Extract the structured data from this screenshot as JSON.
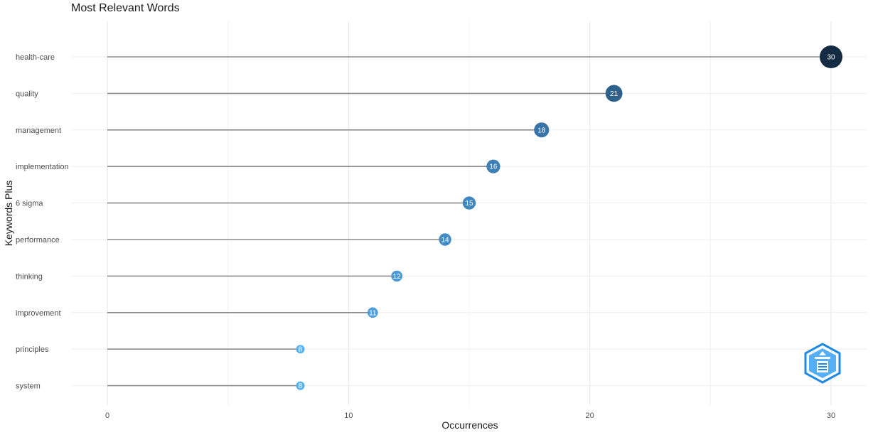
{
  "chart_data": {
    "type": "lollipop",
    "title": "Most Relevant Words",
    "xlabel": "Occurrences",
    "ylabel": "Keywords Plus",
    "xlim": [
      -1.5,
      31.5
    ],
    "xticks": [
      0,
      10,
      20,
      30
    ],
    "grid": true,
    "categories": [
      "health-care",
      "quality",
      "management",
      "implementation",
      "6 sigma",
      "performance",
      "thinking",
      "improvement",
      "principles",
      "system"
    ],
    "values": [
      30,
      21,
      18,
      16,
      15,
      14,
      12,
      11,
      8,
      8
    ],
    "color_scale": {
      "low": "#56b1f7",
      "high": "#132b43"
    }
  },
  "logo": {
    "name": "bibliometrix-logo",
    "colors": [
      "#1e88e5",
      "#64b5f6"
    ]
  }
}
